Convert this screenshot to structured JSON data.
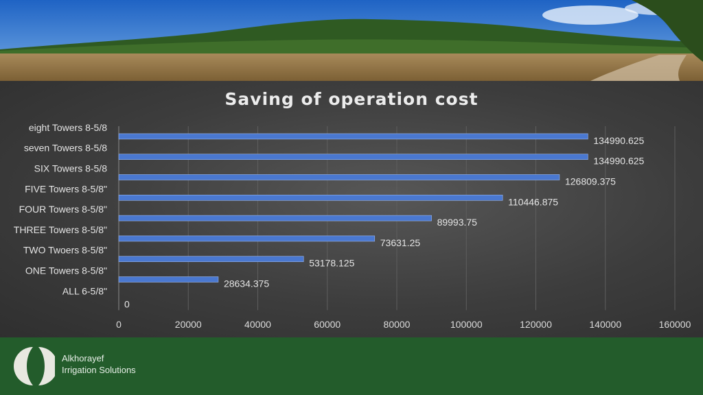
{
  "chart_data": {
    "type": "bar",
    "orientation": "horizontal",
    "title": "Saving of operation cost",
    "categories": [
      "ALL 6-5/8\"",
      "ONE Towers 8-5/8\"",
      "TWO Twoers 8-5/8\"",
      "THREE Towers 8-5/8\"",
      "FOUR Towers 8-5/8\"",
      "FIVE Towers 8-5/8\"",
      "SIX Towers 8-5/8",
      "seven Towers 8-5/8",
      "eight Towers 8-5/8"
    ],
    "values": [
      0,
      28634.375,
      53178.125,
      73631.25,
      89993.75,
      110446.875,
      126809.375,
      134990.625,
      134990.625
    ],
    "data_labels": [
      "0",
      "28634.375",
      "53178.125",
      "73631.25",
      "89993.75",
      "110446.875",
      "126809.375",
      "134990.625",
      "134990.625"
    ],
    "xlim": [
      0,
      160000
    ],
    "x_ticks": [
      "0",
      "20000",
      "40000",
      "60000",
      "80000",
      "100000",
      "120000",
      "140000",
      "160000"
    ],
    "grid": true,
    "bar_color": "#4a78d0",
    "xlabel": "",
    "ylabel": ""
  },
  "footer": {
    "brand_line1": "Alkhorayef",
    "brand_line2": "Irrigation Solutions",
    "background": "#235c2b"
  }
}
